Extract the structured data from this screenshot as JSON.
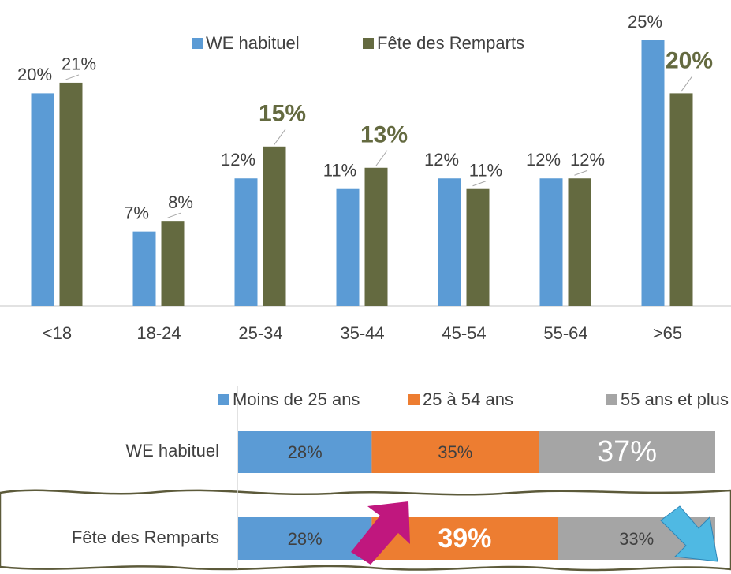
{
  "chart_data": [
    {
      "type": "bar",
      "categories": [
        "<18",
        "18-24",
        "25-34",
        "35-44",
        "45-54",
        "55-64",
        ">65"
      ],
      "legend": "top",
      "series": [
        {
          "name": "WE habituel",
          "color": "#5b9bd5",
          "values": [
            20,
            7,
            12,
            11,
            12,
            12,
            25
          ],
          "value_labels": [
            "20%",
            "7%",
            "12%",
            "11%",
            "12%",
            "12%",
            "25%"
          ]
        },
        {
          "name": "Fête des Remparts",
          "color": "#646a40",
          "values": [
            21,
            8,
            15,
            13,
            11,
            12,
            20
          ],
          "value_labels": [
            "21%",
            "8%",
            "15%",
            "13%",
            "11%",
            "12%",
            "20%"
          ]
        }
      ]
    },
    {
      "type": "stacked-barh",
      "categories": [
        "WE habituel",
        "Fête des Remparts"
      ],
      "legend": "top",
      "series": [
        {
          "name": "Moins de 25 ans",
          "color": "#5b9bd5",
          "values": [
            28,
            28
          ],
          "value_labels": [
            "28%",
            "28%"
          ]
        },
        {
          "name": "25 à 54 ans",
          "color": "#ed7d31",
          "values": [
            35,
            39
          ],
          "value_labels": [
            "35%",
            "39%"
          ]
        },
        {
          "name": "55 ans et plus",
          "color": "#a5a5a5",
          "values": [
            37,
            33
          ],
          "value_labels": [
            "37%",
            "33%"
          ]
        }
      ]
    }
  ]
}
